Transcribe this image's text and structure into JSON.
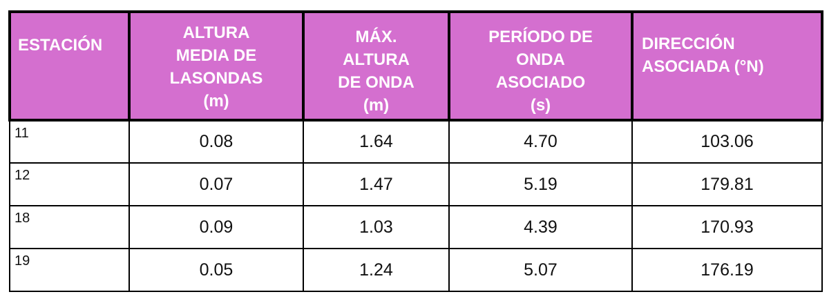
{
  "table": {
    "header": [
      [
        "ESTACIÓN"
      ],
      [
        "ALTURA",
        "MEDIA DE",
        "LASONDAS",
        "(m)"
      ],
      [
        "MÁX.",
        "ALTURA",
        "DE ONDA",
        "(m)"
      ],
      [
        "PERÍODO DE",
        "ONDA",
        "ASOCIADO",
        "(s)"
      ],
      [
        "DIRECCIÓN",
        "ASOCIADA (°N)"
      ]
    ],
    "rows": [
      [
        "11",
        "0.08",
        "1.64",
        "4.70",
        "103.06"
      ],
      [
        "12",
        "0.07",
        "1.47",
        "5.19",
        "179.81"
      ],
      [
        "18",
        "0.09",
        "1.03",
        "4.39",
        "170.93"
      ],
      [
        "19",
        "0.05",
        "1.24",
        "5.07",
        "176.19"
      ]
    ]
  }
}
